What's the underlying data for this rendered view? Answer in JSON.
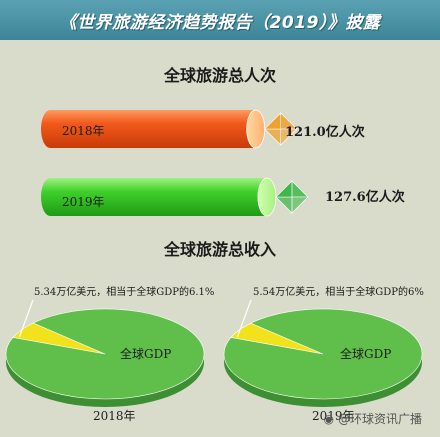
{
  "banner": {
    "title": "《世界旅游经济趋势报告（2019）》披露"
  },
  "chart_data": [
    {
      "type": "bar",
      "title": "全球旅游总人次",
      "categories": [
        "2018年",
        "2019年"
      ],
      "values": [
        121.0,
        127.6
      ],
      "value_labels": [
        "121.0亿人次",
        "127.6亿人次"
      ],
      "unit": "亿人次",
      "colors": [
        "#f05a1e",
        "#3fcf2a"
      ],
      "marker_colors": [
        "#f0a02e",
        "#3fb84a"
      ]
    },
    {
      "type": "pie",
      "title": "全球旅游总收入",
      "pies": [
        {
          "year": "2018年",
          "slices": [
            {
              "label": "5.34万亿美元，相当于全球GDP的6.1%",
              "value": 6.1,
              "color": "#f2e21c"
            },
            {
              "label": "全球GDP",
              "value": 93.9,
              "color": "#5fbf4a"
            }
          ]
        },
        {
          "year": "2019年",
          "slices": [
            {
              "label": "5.54万亿美元，相当于全球GDP的6%",
              "value": 6.0,
              "color": "#f2e21c"
            },
            {
              "label": "全球GDP",
              "value": 94.0,
              "color": "#5fbf4a"
            }
          ]
        }
      ]
    }
  ],
  "watermark": {
    "text": "@环球资讯广播"
  }
}
